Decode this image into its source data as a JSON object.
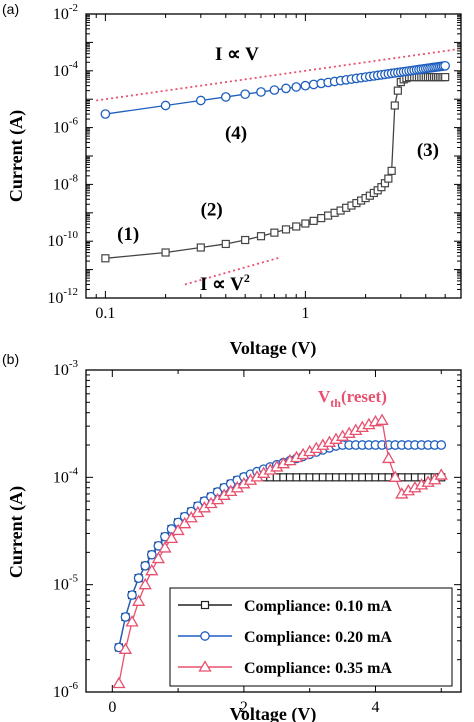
{
  "chart_data": [
    {
      "panel_label": "(a)",
      "type": "line",
      "xlabel": "Voltage (V)",
      "ylabel": "Current (A)",
      "xscale": "log",
      "yscale": "log",
      "xlim": [
        0.08,
        6
      ],
      "ylim": [
        1e-12,
        0.01
      ],
      "xticks": [
        {
          "v": 0.1,
          "label": "0.1"
        },
        {
          "v": 1,
          "label": "1"
        }
      ],
      "yticks": [
        {
          "v": 1e-12,
          "base": "10",
          "exp": "-12"
        },
        {
          "v": 1e-10,
          "base": "10",
          "exp": "-10"
        },
        {
          "v": 1e-08,
          "base": "10",
          "exp": "-8"
        },
        {
          "v": 1e-06,
          "base": "10",
          "exp": "-6"
        },
        {
          "v": 0.0001,
          "base": "10",
          "exp": "-4"
        },
        {
          "v": 0.01,
          "base": "10",
          "exp": "-2"
        }
      ],
      "series": [
        {
          "color": "#444444",
          "marker": "square",
          "x": [
            0.1,
            0.2,
            0.3,
            0.4,
            0.5,
            0.6,
            0.7,
            0.8,
            0.9,
            1.0,
            1.1,
            1.2,
            1.3,
            1.4,
            1.5,
            1.6,
            1.7,
            1.8,
            1.9,
            2.0,
            2.1,
            2.2,
            2.3,
            2.4,
            2.5,
            2.6,
            2.7,
            2.8,
            2.9,
            3.0,
            3.1,
            3.2,
            3.3,
            3.4,
            3.5,
            3.6,
            3.7,
            3.8,
            3.9,
            4.0,
            4.1,
            4.2,
            4.3,
            4.4,
            4.5,
            4.6,
            4.7,
            4.8,
            4.9,
            5.0
          ],
          "y": [
            2.5e-11,
            4e-11,
            6e-11,
            8e-11,
            1.1e-10,
            1.5e-10,
            2e-10,
            2.6e-10,
            3.3e-10,
            4.2e-10,
            5.2e-10,
            6.5e-10,
            8e-10,
            1e-09,
            1.2e-09,
            1.5e-09,
            1.8e-09,
            2.2e-09,
            2.7e-09,
            3.3e-09,
            4e-09,
            5e-09,
            6.2e-09,
            8e-09,
            1.1e-08,
            1.6e-08,
            3e-08,
            6e-06,
            2e-05,
            4e-05,
            5e-05,
            5.5e-05,
            6e-05,
            6e-05,
            6e-05,
            6e-05,
            6e-05,
            6e-05,
            6e-05,
            6e-05,
            6e-05,
            6e-05,
            6e-05,
            6e-05,
            6e-05,
            6e-05,
            6e-05,
            6e-05,
            6e-05,
            6e-05
          ]
        },
        {
          "color": "#1f5fbf",
          "marker": "circle",
          "x": [
            0.1,
            0.2,
            0.3,
            0.4,
            0.5,
            0.6,
            0.7,
            0.8,
            0.9,
            1.0,
            1.1,
            1.2,
            1.3,
            1.4,
            1.5,
            1.6,
            1.7,
            1.8,
            1.9,
            2.0,
            2.1,
            2.2,
            2.3,
            2.4,
            2.5,
            2.6,
            2.7,
            2.8,
            2.9,
            3.0,
            3.1,
            3.2,
            3.3,
            3.4,
            3.5,
            3.6,
            3.7,
            3.8,
            3.9,
            4.0,
            4.1,
            4.2,
            4.3,
            4.4,
            4.5,
            4.6,
            4.7,
            4.8,
            4.9,
            5.0
          ],
          "y": [
            3e-06,
            6e-06,
            9e-06,
            1.2e-05,
            1.5e-05,
            1.8e-05,
            2.1e-05,
            2.4e-05,
            2.7e-05,
            3e-05,
            3.3e-05,
            3.6e-05,
            3.9e-05,
            4.2e-05,
            4.5e-05,
            4.8e-05,
            5.1e-05,
            5.4e-05,
            5.7e-05,
            6e-05,
            6.3e-05,
            6.6e-05,
            6.9e-05,
            7.2e-05,
            7.5e-05,
            7.8e-05,
            8.1e-05,
            8.4e-05,
            8.7e-05,
            9e-05,
            9.3e-05,
            9.6e-05,
            9.9e-05,
            0.000102,
            0.000105,
            0.000108,
            0.000111,
            0.000114,
            0.000117,
            0.00012,
            0.000123,
            0.000126,
            0.000129,
            0.000132,
            0.000135,
            0.000138,
            0.000141,
            0.000144,
            0.000147,
            0.00015
          ]
        }
      ],
      "reference_lines": [
        {
          "label": "I ∝ V",
          "color": "#e8506f",
          "x": [
            0.09,
            5.8
          ],
          "y": [
            9e-06,
            0.00058
          ]
        },
        {
          "label_base": "I ∝ V",
          "label_sup": "2",
          "color": "#e8506f",
          "x": [
            0.25,
            0.75
          ],
          "y": [
            3e-12,
            2.7e-11
          ]
        }
      ],
      "annotations": [
        {
          "text": "(1)",
          "x": 0.13,
          "y": 1.1e-10
        },
        {
          "text": "(2)",
          "x": 0.34,
          "y": 8e-10
        },
        {
          "text": "(3)",
          "x": 4.1,
          "y": 1e-07
        },
        {
          "text": "(4)",
          "x": 0.45,
          "y": 4e-07
        }
      ]
    },
    {
      "panel_label": "(b)",
      "type": "line",
      "xlabel": "Voltage (V)",
      "ylabel": "Current (A)",
      "xscale": "linear",
      "yscale": "log",
      "xlim": [
        -0.4,
        5.3
      ],
      "ylim": [
        1e-06,
        0.001
      ],
      "xticks": [
        {
          "v": 0,
          "label": "0"
        },
        {
          "v": 2,
          "label": "2"
        },
        {
          "v": 4,
          "label": "4"
        }
      ],
      "yticks": [
        {
          "v": 1e-06,
          "base": "10",
          "exp": "-6"
        },
        {
          "v": 1e-05,
          "base": "10",
          "exp": "-5"
        },
        {
          "v": 0.0001,
          "base": "10",
          "exp": "-4"
        },
        {
          "v": 0.001,
          "base": "10",
          "exp": "-3"
        }
      ],
      "series": [
        {
          "name": "Compliance: 0.10 mA",
          "color": "#222222",
          "marker": "square",
          "x": [
            0.1,
            0.2,
            0.3,
            0.4,
            0.5,
            0.6,
            0.7,
            0.8,
            0.9,
            1.0,
            1.1,
            1.2,
            1.3,
            1.4,
            1.5,
            1.6,
            1.7,
            1.8,
            1.9,
            2.0,
            2.1,
            2.2,
            2.3,
            2.4,
            2.5,
            2.6,
            2.7,
            2.8,
            2.9,
            3.0,
            3.1,
            3.2,
            3.3,
            3.4,
            3.5,
            3.6,
            3.7,
            3.8,
            3.9,
            4.0,
            4.1,
            4.2,
            4.3,
            4.4,
            4.5,
            4.6,
            4.7,
            4.8,
            4.9,
            5.0
          ],
          "y": [
            2.6e-06,
            5e-06,
            8e-06,
            1.15e-05,
            1.5e-05,
            1.9e-05,
            2.3e-05,
            2.8e-05,
            3.3e-05,
            3.8e-05,
            4.3e-05,
            4.8e-05,
            5.4e-05,
            6e-05,
            6.6e-05,
            7.3e-05,
            8e-05,
            8.7e-05,
            9.4e-05,
            0.0001,
            0.0001,
            0.0001,
            0.0001,
            0.0001,
            0.0001,
            0.0001,
            0.0001,
            0.0001,
            0.0001,
            0.0001,
            0.0001,
            0.0001,
            0.0001,
            0.0001,
            0.0001,
            0.0001,
            0.0001,
            0.0001,
            0.0001,
            0.0001,
            0.0001,
            0.0001,
            0.0001,
            0.0001,
            0.0001,
            0.0001,
            0.0001,
            0.0001,
            0.0001,
            0.0001
          ]
        },
        {
          "name": "Compliance: 0.20 mA",
          "color": "#1f5fbf",
          "marker": "circle",
          "x": [
            0.1,
            0.2,
            0.3,
            0.4,
            0.5,
            0.6,
            0.7,
            0.8,
            0.9,
            1.0,
            1.1,
            1.2,
            1.3,
            1.4,
            1.5,
            1.6,
            1.7,
            1.8,
            1.9,
            2.0,
            2.1,
            2.2,
            2.3,
            2.4,
            2.5,
            2.6,
            2.7,
            2.8,
            2.9,
            3.0,
            3.1,
            3.2,
            3.3,
            3.4,
            3.5,
            3.6,
            3.7,
            3.8,
            3.9,
            4.0,
            4.1,
            4.2,
            4.3,
            4.4,
            4.5,
            4.6,
            4.7,
            4.8,
            4.9,
            5.0
          ],
          "y": [
            2.6e-06,
            5e-06,
            8e-06,
            1.15e-05,
            1.5e-05,
            1.9e-05,
            2.3e-05,
            2.8e-05,
            3.3e-05,
            3.8e-05,
            4.3e-05,
            4.8e-05,
            5.4e-05,
            6e-05,
            6.6e-05,
            7.3e-05,
            8e-05,
            8.7e-05,
            9.4e-05,
            0.000101,
            0.000107,
            0.000113,
            0.000119,
            0.000125,
            0.000131,
            0.000137,
            0.000143,
            0.00015,
            0.000157,
            0.000164,
            0.000172,
            0.00018,
            0.000188,
            0.000196,
            0.0002,
            0.0002,
            0.0002,
            0.0002,
            0.0002,
            0.0002,
            0.0002,
            0.0002,
            0.0002,
            0.0002,
            0.0002,
            0.0002,
            0.0002,
            0.0002,
            0.0002,
            0.0002
          ]
        },
        {
          "name": "Compliance: 0.35 mA",
          "color": "#e8506f",
          "marker": "triangle",
          "x": [
            0.1,
            0.2,
            0.3,
            0.4,
            0.5,
            0.6,
            0.7,
            0.8,
            0.9,
            1.0,
            1.1,
            1.2,
            1.3,
            1.4,
            1.5,
            1.6,
            1.7,
            1.8,
            1.9,
            2.0,
            2.1,
            2.2,
            2.3,
            2.4,
            2.5,
            2.6,
            2.7,
            2.8,
            2.9,
            3.0,
            3.1,
            3.2,
            3.3,
            3.4,
            3.5,
            3.6,
            3.7,
            3.8,
            3.9,
            4.0,
            4.1,
            4.2,
            4.3,
            4.4,
            4.5,
            4.6,
            4.7,
            4.8,
            4.9,
            5.0
          ],
          "y": [
            1.2e-06,
            2.5e-06,
            4.5e-06,
            7e-06,
            1e-05,
            1.35e-05,
            1.75e-05,
            2.2e-05,
            2.7e-05,
            3.2e-05,
            3.7e-05,
            4.2e-05,
            4.7e-05,
            5.2e-05,
            5.7e-05,
            6.2e-05,
            6.8e-05,
            7.4e-05,
            8e-05,
            8.7e-05,
            9.4e-05,
            0.000101,
            0.000109,
            0.000117,
            0.000125,
            0.000134,
            0.000143,
            0.000153,
            0.000163,
            0.000174,
            0.000186,
            0.000199,
            0.000212,
            0.000226,
            0.000241,
            0.000257,
            0.000274,
            0.000292,
            0.00031,
            0.00033,
            0.00034,
            0.00015,
            0.0001,
            7e-05,
            7.5e-05,
            8e-05,
            8.5e-05,
            9e-05,
            9.5e-05,
            0.000105
          ]
        }
      ],
      "annotations": [
        {
          "text_base": "V",
          "text_sub": "th",
          "text_rest": "(reset)",
          "x": 3.55,
          "y": 0.00053
        }
      ]
    }
  ]
}
